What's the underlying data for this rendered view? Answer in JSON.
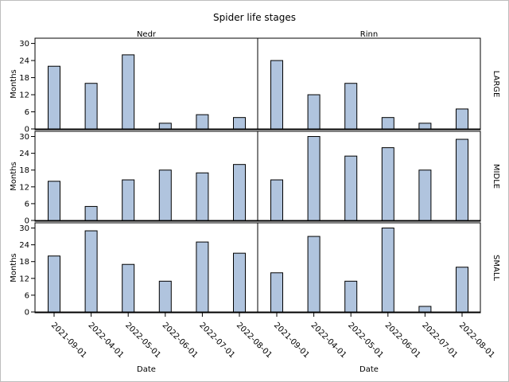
{
  "chart_data": {
    "type": "bar",
    "title": "Spider life stages",
    "xlabel": "Date",
    "ylabel": "Months",
    "columns": [
      "Nedr",
      "Rinn"
    ],
    "rows": [
      "LARGE",
      "MIDLE",
      "SMALL"
    ],
    "categories": [
      "2021-09-01",
      "2022-04-01",
      "2022-05-01",
      "2022-06-01",
      "2022-07-01",
      "2022-08-01"
    ],
    "ylim": [
      0,
      31
    ],
    "yticks": [
      0,
      6,
      12,
      18,
      24,
      30
    ],
    "bar_color": "#b0c4de",
    "grid": false,
    "panels": [
      {
        "row": "LARGE",
        "column": "Nedr",
        "values": [
          22,
          16,
          26,
          2,
          5,
          4
        ]
      },
      {
        "row": "LARGE",
        "column": "Rinn",
        "values": [
          24,
          12,
          16,
          4,
          2,
          7
        ]
      },
      {
        "row": "MIDLE",
        "column": "Nedr",
        "values": [
          14,
          5,
          14.5,
          18,
          17,
          20
        ]
      },
      {
        "row": "MIDLE",
        "column": "Rinn",
        "values": [
          14.5,
          30,
          23,
          26,
          18,
          29
        ]
      },
      {
        "row": "SMALL",
        "column": "Nedr",
        "values": [
          20,
          29,
          17,
          11,
          25,
          21
        ]
      },
      {
        "row": "SMALL",
        "column": "Rinn",
        "values": [
          14,
          27,
          11,
          30,
          2,
          16
        ]
      }
    ]
  }
}
